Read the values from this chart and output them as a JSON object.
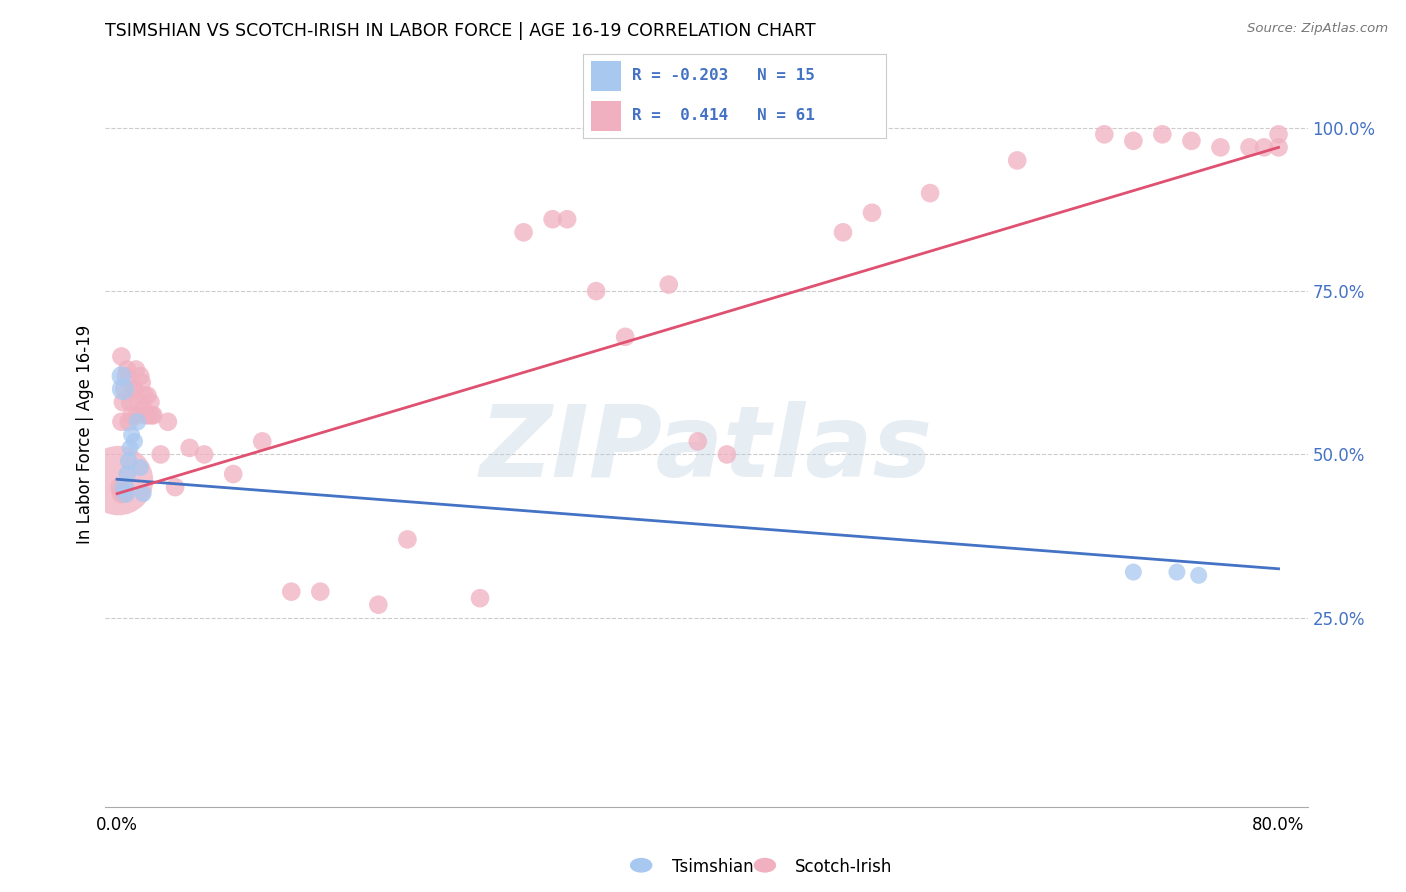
{
  "title": "TSIMSHIAN VS SCOTCH-IRISH IN LABOR FORCE | AGE 16-19 CORRELATION CHART",
  "source": "Source: ZipAtlas.com",
  "ylabel": "In Labor Force | Age 16-19",
  "xlim": [
    -0.008,
    0.82
  ],
  "ylim": [
    -0.04,
    1.1
  ],
  "xtick_vals": [
    0.0,
    0.1,
    0.2,
    0.3,
    0.4,
    0.5,
    0.6,
    0.7,
    0.8
  ],
  "xtick_labels": [
    "0.0%",
    "",
    "",
    "",
    "",
    "",
    "",
    "",
    "80.0%"
  ],
  "ytick_right_vals": [
    0.25,
    0.5,
    0.75,
    1.0
  ],
  "ytick_right_labels": [
    "25.0%",
    "50.0%",
    "75.0%",
    "100.0%"
  ],
  "ts_color": "#a8c8f0",
  "si_color": "#f0b0c0",
  "ts_line_color": "#4472c4",
  "si_line_color": "#e05070",
  "grid_color": "#cccccc",
  "background": "#ffffff",
  "legend_text_color": "#4472c4",
  "watermark": "ZIPatlas",
  "ts_x": [
    0.003,
    0.004,
    0.005,
    0.006,
    0.007,
    0.008,
    0.009,
    0.01,
    0.012,
    0.014,
    0.016,
    0.018,
    0.7,
    0.73,
    0.745
  ],
  "ts_y": [
    0.62,
    0.6,
    0.45,
    0.44,
    0.47,
    0.49,
    0.51,
    0.53,
    0.52,
    0.55,
    0.48,
    0.44,
    0.32,
    0.32,
    0.315
  ],
  "ts_s": [
    200,
    250,
    200,
    180,
    160,
    160,
    150,
    150,
    150,
    160,
    150,
    150,
    150,
    150,
    150
  ],
  "si_x": [
    0.001,
    0.002,
    0.003,
    0.003,
    0.003,
    0.004,
    0.005,
    0.005,
    0.006,
    0.007,
    0.008,
    0.009,
    0.01,
    0.011,
    0.012,
    0.013,
    0.014,
    0.015,
    0.016,
    0.017,
    0.018,
    0.019,
    0.02,
    0.021,
    0.022,
    0.023,
    0.024,
    0.025,
    0.03,
    0.035,
    0.04,
    0.05,
    0.06,
    0.08,
    0.1,
    0.12,
    0.14,
    0.18,
    0.2,
    0.25,
    0.28,
    0.3,
    0.31,
    0.33,
    0.35,
    0.38,
    0.4,
    0.42,
    0.5,
    0.52,
    0.56,
    0.62,
    0.68,
    0.7,
    0.72,
    0.74,
    0.76,
    0.78,
    0.79,
    0.8,
    0.8
  ],
  "si_y": [
    0.46,
    0.45,
    0.44,
    0.55,
    0.65,
    0.58,
    0.6,
    0.44,
    0.62,
    0.63,
    0.55,
    0.58,
    0.56,
    0.6,
    0.6,
    0.63,
    0.56,
    0.58,
    0.62,
    0.61,
    0.57,
    0.59,
    0.56,
    0.59,
    0.56,
    0.58,
    0.56,
    0.56,
    0.5,
    0.55,
    0.45,
    0.51,
    0.5,
    0.47,
    0.52,
    0.29,
    0.29,
    0.27,
    0.37,
    0.28,
    0.84,
    0.86,
    0.86,
    0.75,
    0.68,
    0.76,
    0.52,
    0.5,
    0.84,
    0.87,
    0.9,
    0.95,
    0.99,
    0.98,
    0.99,
    0.98,
    0.97,
    0.97,
    0.97,
    0.99,
    0.97
  ],
  "si_s": [
    2500,
    200,
    200,
    180,
    180,
    180,
    180,
    180,
    180,
    180,
    180,
    180,
    180,
    180,
    180,
    180,
    180,
    180,
    180,
    180,
    180,
    180,
    180,
    180,
    180,
    180,
    180,
    180,
    180,
    180,
    180,
    180,
    180,
    180,
    180,
    180,
    180,
    180,
    180,
    180,
    180,
    180,
    180,
    180,
    180,
    180,
    180,
    180,
    180,
    180,
    180,
    180,
    180,
    180,
    180,
    180,
    180,
    180,
    180,
    180,
    180
  ],
  "ts_line_x": [
    0.0,
    0.8
  ],
  "ts_line_y": [
    0.462,
    0.325
  ],
  "si_line_x": [
    0.0,
    0.8
  ],
  "si_line_y": [
    0.44,
    0.97
  ]
}
